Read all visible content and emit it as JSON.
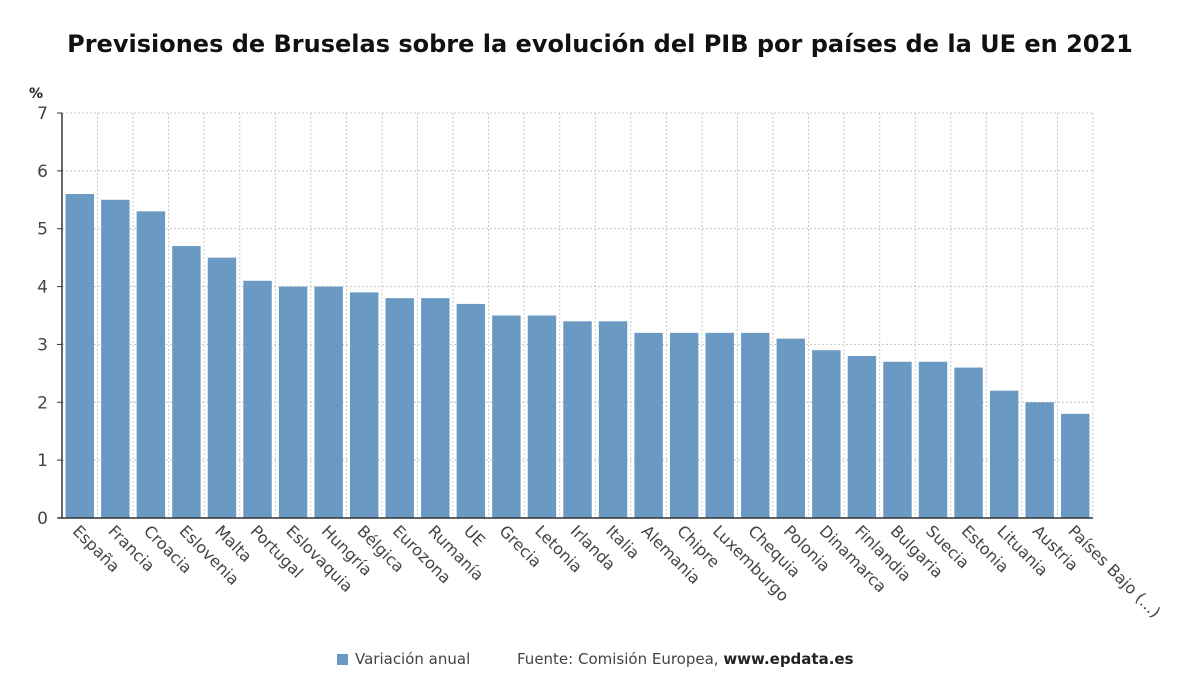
{
  "colors": {
    "bar": "#6a9ac4",
    "grid": "#c8c8c8",
    "axis": "#333333"
  },
  "chart_data": {
    "type": "bar",
    "title": "Previsiones de Bruselas sobre la evolución del PIB por países de la UE en 2021",
    "ylabel": "%",
    "ylim": [
      0,
      7
    ],
    "yticks": [
      0,
      1,
      2,
      3,
      4,
      5,
      6,
      7
    ],
    "grid": true,
    "legend_position": "bottom",
    "categories": [
      "España",
      "Francia",
      "Croacia",
      "Eslovenia",
      "Malta",
      "Portugal",
      "Eslovaquia",
      "Hungría",
      "Bélgica",
      "Eurozona",
      "Rumanía",
      "UE",
      "Grecia",
      "Letonia",
      "Irlanda",
      "Italia",
      "Alemania",
      "Chipre",
      "Luxemburgo",
      "Chequia",
      "Polonia",
      "Dinamarca",
      "Finlandia",
      "Bulgaria",
      "Suecia",
      "Estonia",
      "Lituania",
      "Austria",
      "Países Bajo (...)"
    ],
    "series": [
      {
        "name": "Variación anual",
        "values": [
          5.6,
          5.5,
          5.3,
          4.7,
          4.5,
          4.1,
          4.0,
          4.0,
          3.9,
          3.8,
          3.8,
          3.7,
          3.5,
          3.5,
          3.4,
          3.4,
          3.2,
          3.2,
          3.2,
          3.2,
          3.1,
          2.9,
          2.8,
          2.7,
          2.7,
          2.6,
          2.2,
          2.0,
          1.8
        ]
      }
    ]
  },
  "legend": {
    "label": "Variación anual"
  },
  "source": {
    "prefix": "Fuente: Comisión Europea, ",
    "site": "www.epdata.es"
  }
}
